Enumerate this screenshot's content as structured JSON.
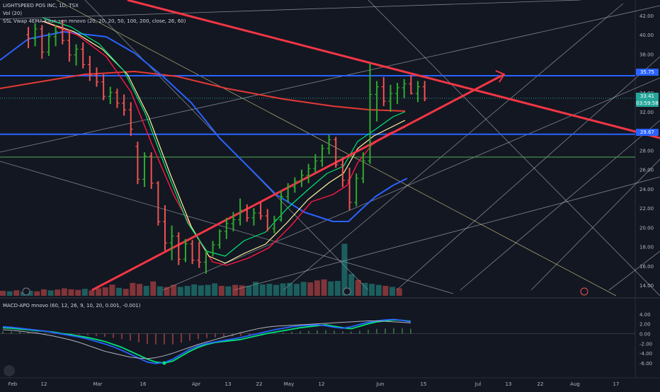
{
  "legend": {
    "symbol": "LIGHTSPEED POS INC, 1D, TSX",
    "volume": "Vol (20)",
    "ssl": "SSL Vwap 4EMA Kijun-sen mnovo (20, 20, 20, 50, 100, 200, close, 26, 60)",
    "macd": "MACD-APO mnovo (60, 12, 26, 9, 10, 20, 0.001, -0.001)"
  },
  "price_labels": {
    "upper_level": "35.75",
    "last_price": "33.41",
    "countdown": "03:59:58",
    "lower_level": "29.67"
  },
  "colors": {
    "background": "#131722",
    "up_candle": "#26a69a",
    "down_candle": "#ef5350",
    "horizontal_level": "#2962ff",
    "trendline": "#f23645",
    "ema_green": "#00e676",
    "ema_yellow": "#fff59d",
    "ema_red": "#ff1744",
    "ma_blue": "#2962ff",
    "ma_red": "#e53935"
  },
  "chart_data": [
    {
      "type": "candlestick",
      "title": "LIGHTSPEED POS INC, 1D, TSX",
      "x_ticks": [
        "Feb",
        "12",
        "Mar",
        "16",
        "Apr",
        "13",
        "22",
        "May",
        "12",
        "Jun",
        "15",
        "Jul",
        "13",
        "22",
        "Aug",
        "17"
      ],
      "y_ticks": [
        "42.00",
        "40.00",
        "38.00",
        "36.00",
        "34.00",
        "32.00",
        "30.00",
        "28.00",
        "26.00",
        "24.00",
        "22.00",
        "20.00",
        "18.00",
        "16.00",
        "14.00"
      ],
      "ylim": [
        13.5,
        42.5
      ],
      "horizontal_levels": [
        35.75,
        29.67,
        27.3
      ],
      "last_price": 33.41,
      "ohlc": [
        [
          40.0,
          40.8,
          38.6,
          39.6
        ],
        [
          39.6,
          41.2,
          38.8,
          40.6
        ],
        [
          40.6,
          41.0,
          37.5,
          38.2
        ],
        [
          38.2,
          40.2,
          37.8,
          39.8
        ],
        [
          39.8,
          41.0,
          38.8,
          40.3
        ],
        [
          40.3,
          41.5,
          39.0,
          39.4
        ],
        [
          39.4,
          40.5,
          37.2,
          37.9
        ],
        [
          37.9,
          39.0,
          36.8,
          38.5
        ],
        [
          38.5,
          39.2,
          36.5,
          36.9
        ],
        [
          36.9,
          37.8,
          35.2,
          35.8
        ],
        [
          35.8,
          36.6,
          34.6,
          35.1
        ],
        [
          35.1,
          35.9,
          33.2,
          33.6
        ],
        [
          33.6,
          34.6,
          32.8,
          34.0
        ],
        [
          34.0,
          34.4,
          32.4,
          32.9
        ],
        [
          32.9,
          33.8,
          31.6,
          32.2
        ],
        [
          32.2,
          33.0,
          29.5,
          30.2
        ],
        [
          28.4,
          28.9,
          24.5,
          25.0
        ],
        [
          25.0,
          27.8,
          24.2,
          27.4
        ],
        [
          27.4,
          27.8,
          24.0,
          24.6
        ],
        [
          24.6,
          24.8,
          20.2,
          20.6
        ],
        [
          20.6,
          22.3,
          17.6,
          18.4
        ],
        [
          18.4,
          20.2,
          16.6,
          19.1
        ],
        [
          19.1,
          19.5,
          16.1,
          16.7
        ],
        [
          16.7,
          18.8,
          16.4,
          18.3
        ],
        [
          18.3,
          18.7,
          16.2,
          16.6
        ],
        [
          16.6,
          18.5,
          15.8,
          16.4
        ],
        [
          16.4,
          17.6,
          15.2,
          17.4
        ],
        [
          17.4,
          18.6,
          17.0,
          18.2
        ],
        [
          18.2,
          19.8,
          17.8,
          19.6
        ],
        [
          19.6,
          21.0,
          18.8,
          20.4
        ],
        [
          20.4,
          21.6,
          19.6,
          20.8
        ],
        [
          20.8,
          23.0,
          20.2,
          21.8
        ],
        [
          21.8,
          22.4,
          20.6,
          21.0
        ],
        [
          21.0,
          22.0,
          20.2,
          21.5
        ],
        [
          21.5,
          22.6,
          20.8,
          21.2
        ],
        [
          21.2,
          21.9,
          19.6,
          19.9
        ],
        [
          19.9,
          21.2,
          19.4,
          20.8
        ],
        [
          20.8,
          23.8,
          20.6,
          23.2
        ],
        [
          23.2,
          24.6,
          22.6,
          24.2
        ],
        [
          24.2,
          25.2,
          23.6,
          24.8
        ],
        [
          24.8,
          26.0,
          24.2,
          25.4
        ],
        [
          25.4,
          26.6,
          24.6,
          26.1
        ],
        [
          26.1,
          27.6,
          25.7,
          26.9
        ],
        [
          26.9,
          28.6,
          26.3,
          28.2
        ],
        [
          28.2,
          29.6,
          27.6,
          29.1
        ],
        [
          29.1,
          29.4,
          26.2,
          26.5
        ],
        [
          26.5,
          27.2,
          24.2,
          24.9
        ],
        [
          24.9,
          26.2,
          21.8,
          22.6
        ],
        [
          22.6,
          25.6,
          22.2,
          25.1
        ],
        [
          25.1,
          27.8,
          24.6,
          26.9
        ],
        [
          26.9,
          37.0,
          26.6,
          33.8
        ],
        [
          33.8,
          35.2,
          31.0,
          34.6
        ],
        [
          34.6,
          35.6,
          32.6,
          33.1
        ],
        [
          33.1,
          34.8,
          32.0,
          33.9
        ],
        [
          33.9,
          35.0,
          32.8,
          34.5
        ],
        [
          34.5,
          35.4,
          33.4,
          34.9
        ],
        [
          34.9,
          35.8,
          33.8,
          33.9
        ],
        [
          33.9,
          35.2,
          33.0,
          34.6
        ],
        [
          34.6,
          35.2,
          33.1,
          33.4
        ]
      ]
    },
    {
      "type": "bar",
      "title": "Vol (20)",
      "note": "volume histogram, relative units",
      "values": [
        20,
        18,
        22,
        16,
        20,
        18,
        26,
        22,
        25,
        30,
        26,
        24,
        28,
        22,
        30,
        34,
        45,
        32,
        28,
        52,
        48,
        40,
        58,
        38,
        35,
        44,
        36,
        40,
        46,
        42,
        44,
        50,
        40,
        38,
        44,
        42,
        40,
        56,
        46,
        48,
        44,
        50,
        52,
        48,
        56,
        54,
        62,
        66,
        58,
        60,
        210,
        88,
        64,
        52,
        48,
        44,
        40,
        36,
        30
      ]
    },
    {
      "type": "line",
      "title": "MACD-APO mnovo (60, 12, 26, 9, 10, 20, 0.001, -0.001)",
      "y_ticks": [
        "4.00",
        "2.00",
        "0.00",
        "-2.00",
        "-4.00",
        "-6.00"
      ],
      "ylim": [
        -7.0,
        4.4
      ],
      "series": [
        {
          "values": [
            1.2,
            1.1,
            0.9,
            0.8,
            0.6,
            0.5,
            0.3,
            0.0,
            -0.2,
            -0.5,
            -0.8,
            -1.2,
            -1.6,
            -2.2,
            -2.8,
            -3.6,
            -4.4,
            -5.2,
            -5.8,
            -6.0,
            -5.6,
            -4.6,
            -3.6,
            -2.8,
            -2.2,
            -1.8,
            -1.6,
            -1.4,
            -1.2,
            -0.8,
            -0.4,
            0.0,
            0.3,
            0.6,
            0.9,
            1.2,
            1.4,
            1.6,
            1.8,
            1.5,
            1.2,
            1.0,
            1.5,
            2.0,
            2.4,
            2.6,
            2.8,
            2.7,
            2.5
          ]
        },
        {
          "values": [
            1.4,
            1.3,
            1.1,
            0.9,
            0.7,
            0.5,
            0.2,
            -0.1,
            -0.4,
            -0.7,
            -1.1,
            -1.6,
            -2.1,
            -2.7,
            -3.4,
            -4.2,
            -5.0,
            -5.8,
            -6.1,
            -5.9,
            -5.2,
            -4.2,
            -3.2,
            -2.5,
            -2.0,
            -1.7,
            -1.4,
            -1.1,
            -0.8,
            -0.4,
            0.0,
            0.4,
            0.8,
            1.1,
            1.4,
            1.6,
            1.7,
            1.8,
            1.6,
            1.3,
            1.1,
            1.4,
            1.9,
            2.3,
            2.6,
            2.8,
            2.9,
            2.7,
            2.4
          ]
        },
        {
          "values": [
            0.8,
            0.7,
            0.5,
            0.3,
            0.1,
            -0.2,
            -0.5,
            -0.9,
            -1.3,
            -1.8,
            -2.4,
            -3.0,
            -3.6,
            -4.0,
            -4.4,
            -4.8,
            -5.0,
            -5.1,
            -4.9,
            -4.5,
            -4.0,
            -3.4,
            -2.8,
            -2.2,
            -1.7,
            -1.2,
            -0.7,
            -0.3,
            0.2,
            0.6,
            1.0,
            1.3,
            1.5,
            1.6,
            1.7,
            1.8,
            1.9,
            2.0,
            2.1,
            2.2,
            2.3,
            2.4,
            2.5,
            2.6,
            2.6,
            2.5,
            2.4,
            2.3,
            2.2
          ]
        }
      ]
    }
  ]
}
